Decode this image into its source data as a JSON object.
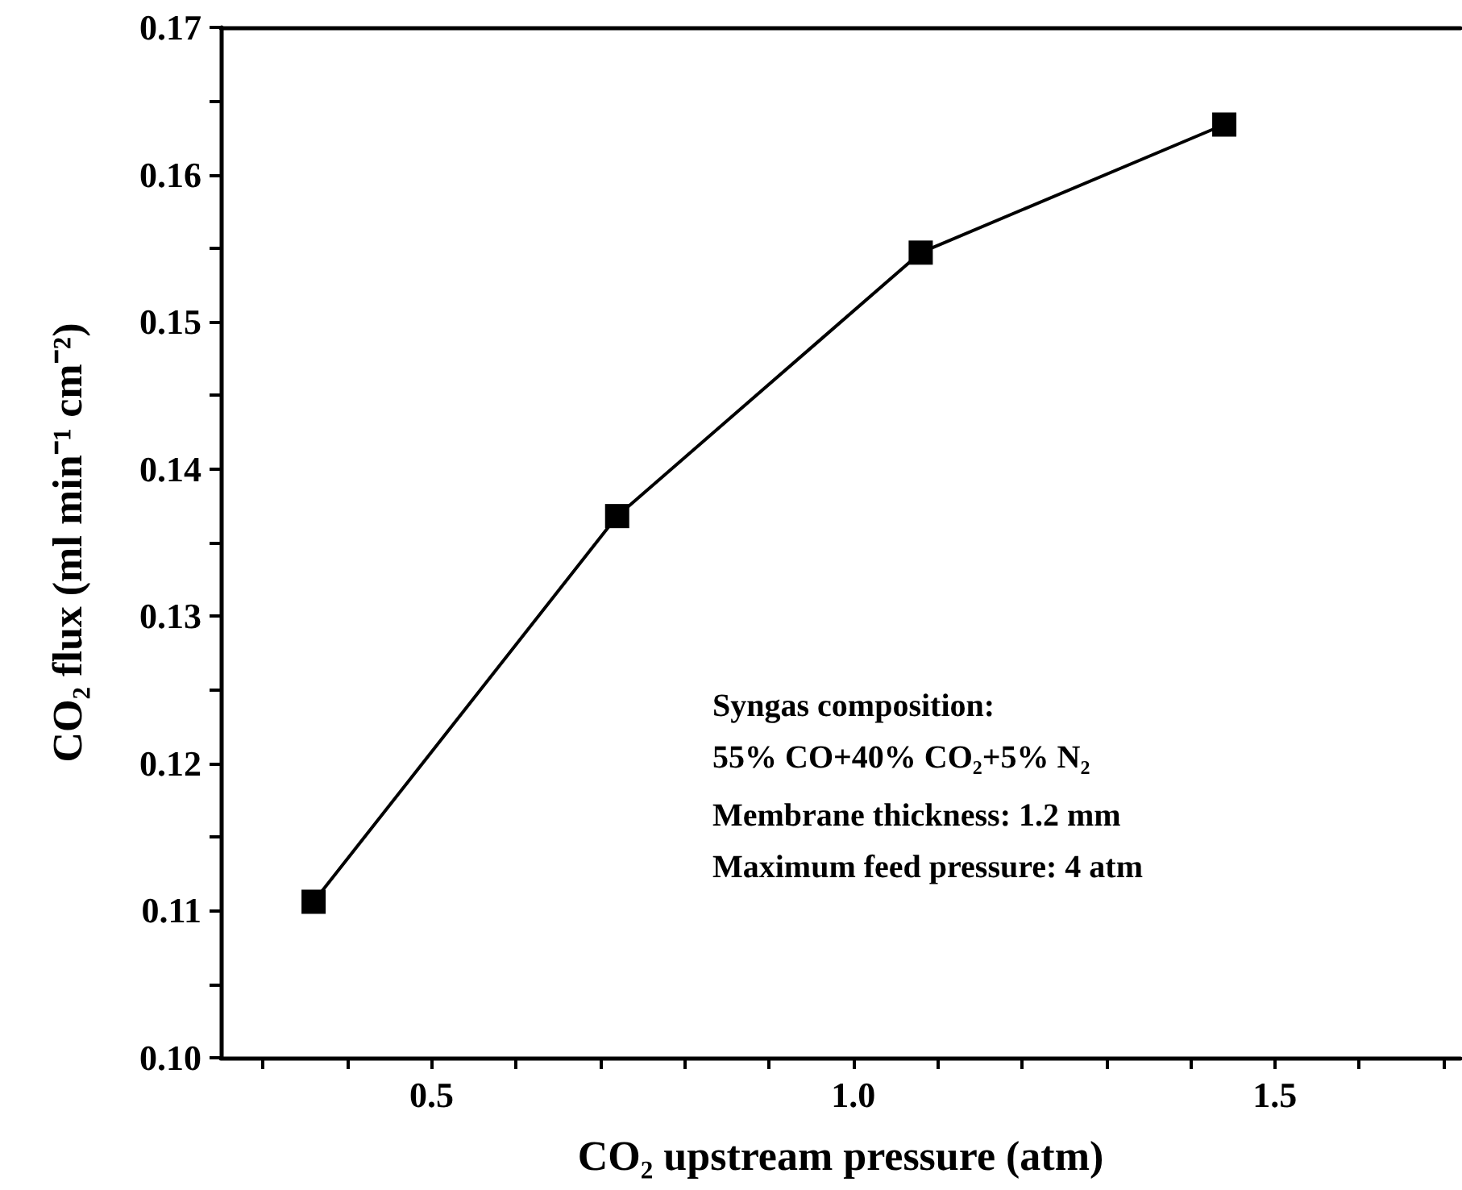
{
  "chart_data": {
    "type": "line",
    "xlabel": "CO₂ upstream pressure (atm)",
    "ylabel": "CO₂ flux (ml min⁻¹ cm⁻²)",
    "x": [
      0.36,
      0.72,
      1.08,
      1.44
    ],
    "series": [
      {
        "color": "#000000",
        "values": [
          0.1106,
          0.1368,
          0.1547,
          0.1634
        ]
      }
    ],
    "marker": "square",
    "line_style": "solid",
    "xlim": [
      0.25,
      1.72
    ],
    "xticks": [
      {
        "value": 0.3,
        "label": null
      },
      {
        "value": 0.4,
        "label": null
      },
      {
        "value": 0.5,
        "label": "0.5"
      },
      {
        "value": 0.6,
        "label": null
      },
      {
        "value": 0.7,
        "label": null
      },
      {
        "value": 0.8,
        "label": null
      },
      {
        "value": 0.9,
        "label": null
      },
      {
        "value": 1.0,
        "label": "1.0"
      },
      {
        "value": 1.1,
        "label": null
      },
      {
        "value": 1.2,
        "label": null
      },
      {
        "value": 1.3,
        "label": null
      },
      {
        "value": 1.4,
        "label": null
      },
      {
        "value": 1.5,
        "label": "1.5"
      },
      {
        "value": 1.6,
        "label": null
      },
      {
        "value": 1.7,
        "label": null
      }
    ],
    "ylim": [
      0.1,
      0.17
    ],
    "yticks": [
      {
        "value": 0.1,
        "label": "0.10"
      },
      {
        "value": 0.105,
        "label": null
      },
      {
        "value": 0.11,
        "label": "0.11"
      },
      {
        "value": 0.115,
        "label": null
      },
      {
        "value": 0.12,
        "label": "0.12"
      },
      {
        "value": 0.125,
        "label": null
      },
      {
        "value": 0.13,
        "label": "0.13"
      },
      {
        "value": 0.135,
        "label": null
      },
      {
        "value": 0.14,
        "label": "0.14"
      },
      {
        "value": 0.145,
        "label": null
      },
      {
        "value": 0.15,
        "label": "0.15"
      },
      {
        "value": 0.155,
        "label": null
      },
      {
        "value": 0.16,
        "label": "0.16"
      },
      {
        "value": 0.165,
        "label": null
      },
      {
        "value": 0.17,
        "label": "0.17"
      }
    ],
    "annotations": [
      "Syngas composition:",
      "55% CO+40% CO₂+5% N₂",
      "Membrane thickness: 1.2 mm",
      "Maximum feed pressure: 4 atm"
    ]
  }
}
